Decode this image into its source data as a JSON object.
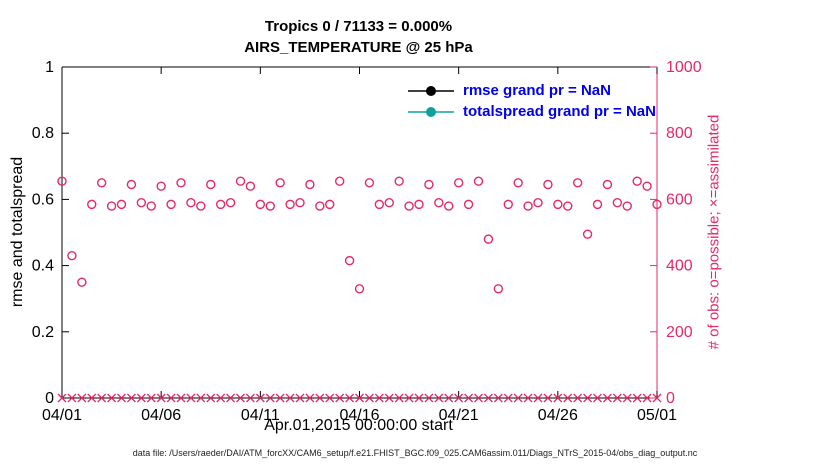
{
  "chart_data": {
    "type": "scatter",
    "title1": "Tropics 0 / 71133 = 0.000%",
    "title2": "AIRS_TEMPERATURE @ 25 hPa",
    "xlabel": "Apr.01,2015 00:00:00 start",
    "ylabel_left": "rmse and totalspread",
    "ylabel_right": "# of obs: o=possible; ×=assimilated",
    "caption": "data file: /Users/raeder/DAI/ATM_forcXX/CAM6_setup/f.e21.FHIST_BGC.f09_025.CAM6assim.011/Diags_NTrS_2015-04/obs_diag_output.nc",
    "axis_color_left": "#000000",
    "axis_color_right": "#e42a6a",
    "legend_text_color": "#0000ee",
    "xlim": [
      0,
      30
    ],
    "ylim_left": [
      0,
      1
    ],
    "ylim_right": [
      0,
      1000
    ],
    "x_tick_values": [
      0,
      5,
      10,
      15,
      20,
      25,
      30
    ],
    "x_tick_labels": [
      "04/01",
      "04/06",
      "04/11",
      "04/16",
      "04/21",
      "04/26",
      "05/01"
    ],
    "y_left_tick_values": [
      0,
      0.2,
      0.4,
      0.6,
      0.8,
      1
    ],
    "y_left_tick_labels": [
      "0",
      "0.2",
      "0.4",
      "0.6",
      "0.8",
      "1"
    ],
    "y_right_tick_values": [
      0,
      200,
      400,
      600,
      800,
      1000
    ],
    "y_right_tick_labels": [
      "0",
      "200",
      "400",
      "600",
      "800",
      "1000"
    ],
    "legend": [
      {
        "label": "rmse grand pr = NaN",
        "color": "#000000"
      },
      {
        "label": "totalspread grand pr = NaN",
        "color": "#10a0a0"
      }
    ],
    "x": [
      0,
      0.5,
      1,
      1.5,
      2,
      2.5,
      3,
      3.5,
      4,
      4.5,
      5,
      5.5,
      6,
      6.5,
      7,
      7.5,
      8,
      8.5,
      9,
      9.5,
      10,
      10.5,
      11,
      11.5,
      12,
      12.5,
      13,
      13.5,
      14,
      14.5,
      15,
      15.5,
      16,
      16.5,
      17,
      17.5,
      18,
      18.5,
      19,
      19.5,
      20,
      20.5,
      21,
      21.5,
      22,
      22.5,
      23,
      23.5,
      24,
      24.5,
      25,
      25.5,
      26,
      26.5,
      27,
      27.5,
      28,
      28.5,
      29,
      29.5,
      30
    ],
    "series": [
      {
        "name": "possible",
        "marker": "o",
        "color": "#e42a6a",
        "y": [
          655,
          430,
          350,
          585,
          650,
          580,
          585,
          645,
          590,
          580,
          640,
          585,
          650,
          590,
          580,
          645,
          585,
          590,
          655,
          640,
          585,
          580,
          650,
          585,
          590,
          645,
          580,
          585,
          655,
          415,
          330,
          650,
          585,
          590,
          655,
          580,
          585,
          645,
          590,
          580,
          650,
          585,
          655,
          480,
          330,
          585,
          650,
          580,
          590,
          645,
          585,
          580,
          650,
          495,
          585,
          645,
          590,
          580,
          655,
          640,
          585
        ]
      },
      {
        "name": "assimilated",
        "marker": "x",
        "color": "#e42a6a",
        "y": [
          0,
          0,
          0,
          0,
          0,
          0,
          0,
          0,
          0,
          0,
          0,
          0,
          0,
          0,
          0,
          0,
          0,
          0,
          0,
          0,
          0,
          0,
          0,
          0,
          0,
          0,
          0,
          0,
          0,
          0,
          0,
          0,
          0,
          0,
          0,
          0,
          0,
          0,
          0,
          0,
          0,
          0,
          0,
          0,
          0,
          0,
          0,
          0,
          0,
          0,
          0,
          0,
          0,
          0,
          0,
          0,
          0,
          0,
          0,
          0,
          0
        ]
      }
    ]
  }
}
